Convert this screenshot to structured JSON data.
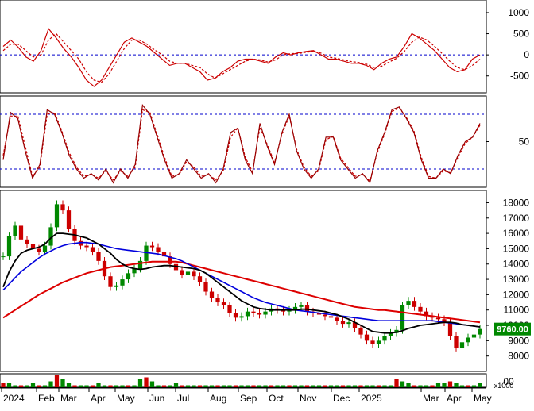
{
  "chart_data": [
    {
      "panel": "macd",
      "type": "line",
      "yticks": [
        1000,
        500,
        0,
        -500
      ],
      "ylim": [
        -900,
        1300
      ],
      "zero_line": 0,
      "colors": {
        "line": "#cc0000",
        "signal": "#cc0000",
        "ref": "#0000cc"
      },
      "series": [
        {
          "style": "solid",
          "values": [
            200,
            350,
            180,
            -50,
            -150,
            100,
            620,
            400,
            150,
            -50,
            -300,
            -600,
            -750,
            -600,
            -300,
            0,
            300,
            400,
            300,
            200,
            50,
            -100,
            -250,
            -200,
            -200,
            -300,
            -400,
            -600,
            -550,
            -400,
            -300,
            -150,
            -100,
            -100,
            -150,
            -200,
            -50,
            50,
            0,
            50,
            80,
            100,
            0,
            -100,
            -100,
            -150,
            -200,
            -200,
            -250,
            -350,
            -200,
            -100,
            -50,
            200,
            500,
            400,
            250,
            100,
            -100,
            -300,
            -400,
            -350,
            -100,
            0
          ]
        },
        {
          "style": "dashed",
          "values": [
            100,
            250,
            250,
            100,
            -50,
            0,
            350,
            500,
            300,
            100,
            -100,
            -400,
            -600,
            -650,
            -450,
            -150,
            150,
            350,
            350,
            250,
            120,
            0,
            -150,
            -200,
            -200,
            -250,
            -300,
            -450,
            -550,
            -450,
            -350,
            -250,
            -150,
            -100,
            -120,
            -170,
            -120,
            0,
            30,
            30,
            60,
            80,
            40,
            -50,
            -80,
            -120,
            -160,
            -180,
            -220,
            -300,
            -270,
            -170,
            -80,
            80,
            300,
            420,
            350,
            200,
            30,
            -150,
            -300,
            -350,
            -250,
            -100
          ]
        }
      ]
    },
    {
      "panel": "stochastic",
      "type": "line",
      "yticks": [
        50
      ],
      "ylim": [
        0,
        100
      ],
      "ref_levels": [
        80,
        20
      ],
      "colors": {
        "k": "#990000",
        "d": "#cc0000",
        "ref": "#0000cc"
      },
      "series": [
        {
          "style": "solid",
          "values": [
            30,
            82,
            75,
            40,
            10,
            25,
            85,
            80,
            60,
            35,
            20,
            10,
            15,
            8,
            20,
            5,
            20,
            10,
            25,
            90,
            80,
            55,
            30,
            10,
            15,
            30,
            20,
            10,
            15,
            5,
            20,
            60,
            65,
            30,
            15,
            70,
            45,
            25,
            60,
            80,
            40,
            20,
            10,
            20,
            55,
            55,
            30,
            20,
            10,
            15,
            5,
            40,
            60,
            85,
            88,
            75,
            60,
            30,
            10,
            10,
            20,
            15,
            35,
            50,
            55,
            70
          ]
        },
        {
          "style": "dashed",
          "values": [
            35,
            78,
            78,
            45,
            12,
            22,
            80,
            82,
            62,
            38,
            22,
            12,
            14,
            10,
            18,
            8,
            18,
            12,
            22,
            85,
            82,
            58,
            33,
            12,
            14,
            28,
            22,
            12,
            14,
            8,
            18,
            55,
            65,
            33,
            17,
            66,
            47,
            27,
            58,
            78,
            42,
            22,
            12,
            18,
            52,
            56,
            32,
            22,
            12,
            14,
            7,
            38,
            58,
            83,
            87,
            76,
            62,
            33,
            12,
            10,
            18,
            16,
            33,
            48,
            55,
            68
          ]
        }
      ]
    },
    {
      "panel": "price",
      "type": "candlestick",
      "yticks": [
        18000,
        17000,
        16000,
        15000,
        14000,
        13000,
        12000,
        11000,
        10000,
        9000,
        8000
      ],
      "ylim": [
        7000,
        18800
      ],
      "last_price": 9760,
      "last_price_label": "9760.00",
      "x_labels": [
        "2024",
        "Feb",
        "Mar",
        "Apr",
        "May",
        "Jun",
        "Jul",
        "Aug",
        "Sep",
        "Oct",
        "Nov",
        "Dec",
        "2025",
        "Mar",
        "Apr",
        "May"
      ],
      "colors": {
        "up": "#008800",
        "down": "#cc0000",
        "ma_short": "#000000",
        "ma_mid": "#0000dd",
        "ma_long": "#dd0000",
        "label_bg": "#008800"
      },
      "close": [
        14500,
        15800,
        16500,
        15600,
        15300,
        15000,
        14800,
        15200,
        16400,
        17900,
        17500,
        16300,
        15500,
        15200,
        15100,
        14800,
        14200,
        13200,
        12500,
        12600,
        13000,
        13400,
        13700,
        14200,
        15200,
        15100,
        14800,
        14500,
        14000,
        13600,
        13300,
        13500,
        13200,
        12800,
        12200,
        11800,
        11500,
        11300,
        10800,
        10500,
        10600,
        10900,
        10800,
        10700,
        10900,
        11100,
        11000,
        10900,
        11000,
        11200,
        11300,
        10900,
        10800,
        10700,
        10600,
        10500,
        10300,
        10100,
        10200,
        9800,
        9400,
        9000,
        8800,
        9000,
        9300,
        9500,
        9700,
        11300,
        11600,
        11200,
        10900,
        10600,
        10500,
        10400,
        10200,
        9300,
        8500,
        8900,
        9200,
        9400,
        9760
      ],
      "ma_short": [
        12500,
        13500,
        14200,
        14700,
        14900,
        15000,
        15100,
        15300,
        15700,
        16000,
        16000,
        15950,
        15900,
        15800,
        15700,
        15500,
        15300,
        15000,
        14700,
        14300,
        14000,
        13800,
        13700,
        13650,
        13700,
        13800,
        13850,
        13900,
        13900,
        13850,
        13800,
        13750,
        13700,
        13600,
        13400,
        13100,
        12800,
        12500,
        12200,
        11900,
        11600,
        11400,
        11200,
        11100,
        11050,
        11000,
        11000,
        11000,
        11000,
        11000,
        11050,
        11050,
        11000,
        10950,
        10900,
        10800,
        10700,
        10550,
        10400,
        10200,
        10000,
        9800,
        9600,
        9550,
        9500,
        9500,
        9550,
        9650,
        9800,
        9900,
        10000,
        10050,
        10100,
        10150,
        10200,
        10200,
        10150,
        10050,
        10000,
        9950,
        9900
      ],
      "ma_mid": [
        12300,
        12700,
        13100,
        13500,
        13800,
        14100,
        14400,
        14650,
        14850,
        15050,
        15200,
        15300,
        15350,
        15400,
        15400,
        15350,
        15300,
        15200,
        15100,
        15000,
        14950,
        14900,
        14850,
        14800,
        14750,
        14700,
        14650,
        14550,
        14450,
        14350,
        14200,
        14000,
        13800,
        13600,
        13400,
        13200,
        13000,
        12800,
        12600,
        12400,
        12200,
        12000,
        11800,
        11650,
        11500,
        11400,
        11300,
        11200,
        11100,
        11000,
        10950,
        10900,
        10850,
        10800,
        10750,
        10700,
        10650,
        10600,
        10550,
        10500,
        10450,
        10400,
        10350,
        10300,
        10300,
        10300,
        10300,
        10300,
        10300,
        10300,
        10300,
        10300,
        10300,
        10250,
        10200,
        10150,
        10100,
        10050,
        10000,
        9950,
        9900
      ],
      "ma_long": [
        10500,
        10750,
        11000,
        11250,
        11500,
        11750,
        12000,
        12200,
        12400,
        12600,
        12800,
        12950,
        13100,
        13250,
        13400,
        13500,
        13600,
        13700,
        13800,
        13850,
        13900,
        13950,
        14000,
        14050,
        14100,
        14150,
        14150,
        14150,
        14150,
        14150,
        14100,
        14000,
        13900,
        13800,
        13700,
        13600,
        13500,
        13400,
        13300,
        13200,
        13100,
        13000,
        12900,
        12800,
        12700,
        12600,
        12500,
        12400,
        12300,
        12200,
        12100,
        12000,
        11900,
        11800,
        11700,
        11600,
        11500,
        11400,
        11300,
        11200,
        11150,
        11100,
        11050,
        11000,
        11000,
        10950,
        10900,
        10850,
        10800,
        10750,
        10700,
        10650,
        10600,
        10550,
        10500,
        10450,
        10400,
        10350,
        10300,
        10250,
        10200
      ]
    },
    {
      "panel": "volume",
      "type": "bar",
      "y_unit_label": "x1000",
      "y_partial_tick": "00",
      "colors": {
        "up": "#008800",
        "down": "#cc0000"
      },
      "values": [
        2,
        2,
        1,
        1,
        1,
        2,
        1,
        1,
        3,
        6,
        4,
        2,
        1,
        1,
        1,
        1,
        2,
        1,
        1,
        1,
        1,
        1,
        1,
        4,
        5,
        3,
        1,
        1,
        1,
        2,
        1,
        1,
        1,
        1,
        1,
        1,
        1,
        1,
        1,
        1,
        1,
        1,
        1,
        1,
        1,
        1,
        1,
        1,
        1,
        1,
        1,
        1,
        1,
        1,
        1,
        1,
        1,
        1,
        1,
        1,
        1,
        1,
        1,
        1,
        1,
        1,
        4,
        3,
        2,
        1,
        1,
        1,
        1,
        2,
        2,
        3,
        2,
        1,
        1,
        1,
        2
      ]
    }
  ]
}
